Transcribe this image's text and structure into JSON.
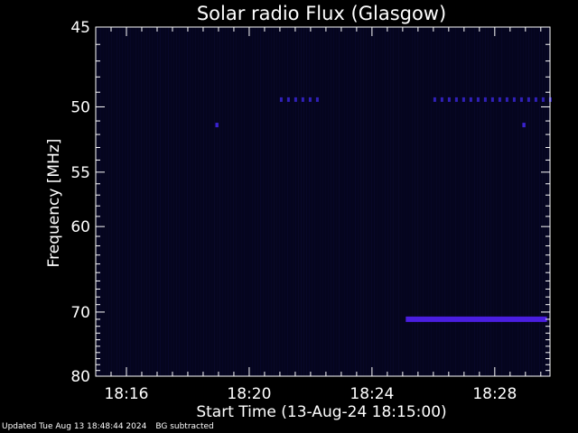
{
  "chart_data": {
    "type": "heatmap",
    "title": "Solar radio Flux (Glasgow)",
    "xlabel": "Start Time (13-Aug-24 18:15:00)",
    "ylabel": "Frequency [MHz]",
    "x_ticks": [
      "18:16",
      "18:20",
      "18:24",
      "18:28"
    ],
    "x_tick_minutes": [
      16,
      20,
      24,
      28
    ],
    "x_range_minutes": [
      15.0,
      29.8
    ],
    "y_ticks": [
      45,
      50,
      55,
      60,
      70,
      80
    ],
    "y_range_mhz": [
      45,
      80
    ],
    "y_scale": "reciprocal",
    "features": [
      {
        "name": "band-71mhz",
        "freq_mhz": 71,
        "t_start_minutes": 25.1,
        "t_end_minutes": 29.7,
        "color": "#4a1ee0"
      },
      {
        "name": "band-49.5mhz-a",
        "freq_mhz": 49.5,
        "t_start_minutes": 21.0,
        "t_end_minutes": 22.4,
        "color": "#3020b8"
      },
      {
        "name": "band-49.5mhz-b",
        "freq_mhz": 49.5,
        "t_start_minutes": 26.0,
        "t_end_minutes": 29.8,
        "color": "#3020b8"
      },
      {
        "name": "spot-51.3mhz-a",
        "freq_mhz": 51.3,
        "t_start_minutes": 18.9,
        "t_end_minutes": 19.0,
        "color": "#3a22d0"
      },
      {
        "name": "spot-51.3mhz-b",
        "freq_mhz": 51.3,
        "t_start_minutes": 28.9,
        "t_end_minutes": 29.0,
        "color": "#3a22d0"
      }
    ],
    "background_color": "#05051e",
    "grid": false
  },
  "footer": {
    "updated": "Updated Tue Aug 13 18:48:44 2024",
    "note": "BG subtracted"
  }
}
